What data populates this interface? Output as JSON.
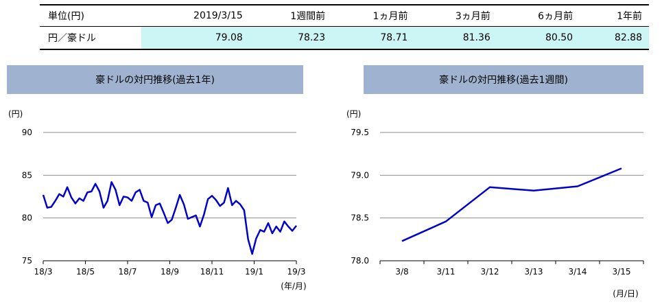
{
  "table": {
    "headers": [
      "単位(円)",
      "2019/3/15",
      "1週間前",
      "1ヵ月前",
      "3ヵ月前",
      "6ヵ月前",
      "1年前"
    ],
    "row_label": "円／豪ドル",
    "values": [
      "79.08",
      "78.23",
      "78.71",
      "81.36",
      "80.50",
      "82.88"
    ]
  },
  "chart_data": [
    {
      "type": "line",
      "title": "豪ドルの対円推移(過去1年)",
      "ylabel": "(円)",
      "xlabel": "(年/月)",
      "ylim": [
        75,
        90
      ],
      "yticks": [
        "90",
        "85",
        "80",
        "75"
      ],
      "xticks": [
        "18/3",
        "18/5",
        "18/7",
        "18/9",
        "18/11",
        "19/1",
        "19/3"
      ],
      "grid": true,
      "line_color": "#0000cc",
      "series": [
        {
          "values": [
            82.7,
            81.2,
            81.3,
            82.0,
            82.8,
            82.5,
            83.6,
            82.4,
            81.7,
            82.3,
            82.0,
            83.0,
            83.1,
            84.0,
            83.1,
            81.2,
            82.0,
            84.2,
            83.3,
            81.5,
            82.5,
            82.4,
            82.0,
            83.0,
            83.3,
            82.0,
            81.8,
            80.1,
            81.5,
            81.7,
            80.6,
            79.4,
            79.8,
            81.2,
            82.7,
            81.6,
            79.9,
            80.1,
            80.3,
            79.0,
            80.4,
            82.2,
            82.6,
            82.1,
            81.4,
            81.8,
            83.5,
            81.5,
            82.0,
            81.6,
            80.9,
            77.5,
            75.8,
            77.6,
            78.6,
            78.4,
            79.4,
            78.2,
            79.0,
            78.4,
            79.6,
            79.0,
            78.5,
            79.1
          ]
        }
      ]
    },
    {
      "type": "line",
      "title": "豪ドルの対円推移(過去1週間)",
      "ylabel": "(円)",
      "xlabel": "(月/日)",
      "ylim": [
        78.0,
        79.5
      ],
      "yticks": [
        "79.5",
        "79.0",
        "78.5",
        "78.0"
      ],
      "categories": [
        "3/8",
        "3/11",
        "3/12",
        "3/13",
        "3/14",
        "3/15"
      ],
      "grid": true,
      "line_color": "#0000cc",
      "series": [
        {
          "values": [
            78.23,
            78.46,
            78.86,
            78.82,
            78.87,
            79.08
          ]
        }
      ]
    }
  ]
}
